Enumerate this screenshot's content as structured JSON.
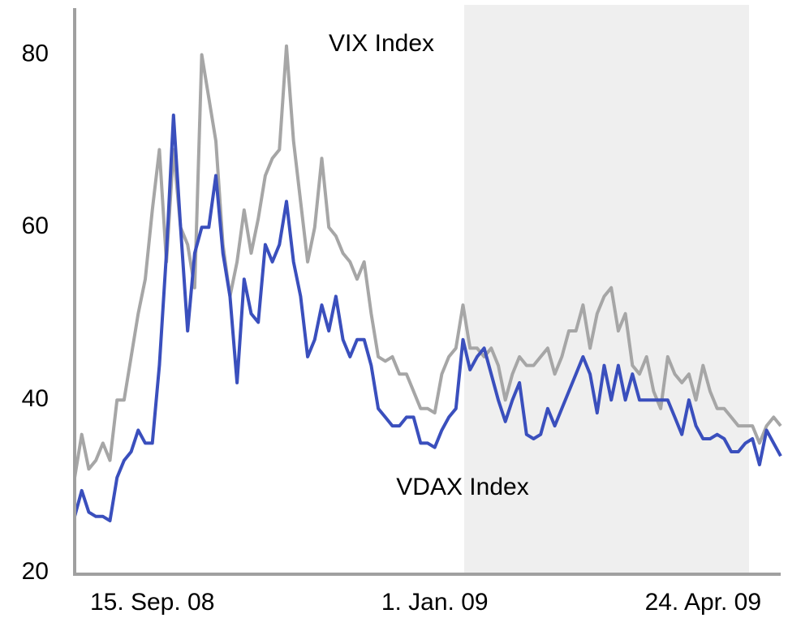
{
  "chart_data": {
    "type": "line",
    "categories": [
      null,
      null,
      null,
      null,
      null,
      null,
      null,
      null,
      null,
      null,
      null,
      "15. Sep. 08",
      null,
      null,
      null,
      null,
      null,
      null,
      null,
      null,
      null,
      null,
      null,
      null,
      null,
      null,
      null,
      null,
      null,
      null,
      null,
      null,
      null,
      null,
      null,
      null,
      null,
      null,
      null,
      null,
      null,
      null,
      null,
      null,
      null,
      null,
      null,
      null,
      null,
      null,
      null,
      "1. Jan. 09",
      null,
      null,
      null,
      null,
      null,
      null,
      null,
      null,
      null,
      null,
      null,
      null,
      null,
      null,
      null,
      null,
      null,
      null,
      null,
      null,
      null,
      null,
      null,
      null,
      null,
      null,
      null,
      null,
      null,
      null,
      null,
      null,
      null,
      null,
      null,
      null,
      null,
      "24. Apr. 09",
      null,
      null,
      null,
      null,
      null,
      null,
      null,
      null,
      null,
      null,
      null
    ],
    "series": [
      {
        "name": "VIX Index",
        "color": "#a6a6a6",
        "values": [
          31,
          36,
          32,
          33,
          35,
          33,
          40,
          40,
          45,
          50,
          54,
          62,
          69,
          56,
          69,
          60,
          58,
          53,
          80,
          75,
          70,
          58,
          52,
          56,
          62,
          57,
          61,
          66,
          68,
          69,
          81,
          70,
          63,
          56,
          60,
          68,
          60,
          59,
          57,
          56,
          54,
          56,
          50,
          45,
          44.5,
          45,
          43,
          43,
          41,
          39,
          39,
          38.5,
          43,
          45,
          46,
          51,
          46,
          46,
          45,
          46,
          44,
          40,
          43,
          45,
          44,
          44,
          45,
          46,
          43,
          45,
          48,
          48,
          51,
          46,
          50,
          52,
          53,
          48,
          50,
          44,
          43,
          45,
          41,
          39,
          45,
          43,
          42,
          43,
          40,
          44,
          41,
          39,
          39,
          38,
          37,
          37,
          37,
          35,
          37,
          38,
          37
        ]
      },
      {
        "name": "VDAX Index",
        "color": "#3a4fbd",
        "values": [
          26.5,
          29.5,
          27,
          26.5,
          26.5,
          26,
          31,
          33,
          34,
          36.5,
          35,
          35,
          44,
          57,
          73,
          60,
          48,
          57,
          60,
          60,
          66,
          57,
          52,
          42,
          54,
          50,
          49,
          58,
          56,
          58,
          63,
          56,
          52,
          45,
          47,
          51,
          48,
          52,
          47,
          45,
          47,
          47,
          44,
          39,
          38,
          37,
          37,
          38,
          38,
          35,
          35,
          34.5,
          36.5,
          38,
          39,
          47,
          43.5,
          45,
          46,
          43,
          40,
          37.5,
          40,
          42,
          36,
          35.5,
          36,
          39,
          37,
          39,
          41,
          43,
          45,
          43,
          38.5,
          44,
          40,
          44,
          40,
          43,
          40,
          40,
          40,
          40,
          40,
          38,
          36,
          40,
          37,
          35.5,
          35.5,
          36,
          35.5,
          34,
          34,
          35,
          35.5,
          32.5,
          36.5,
          35,
          33.5
        ]
      }
    ],
    "ylim": [
      20,
      85.4
    ],
    "yticks": [
      20,
      40,
      60,
      80
    ],
    "grid": false
  }
}
